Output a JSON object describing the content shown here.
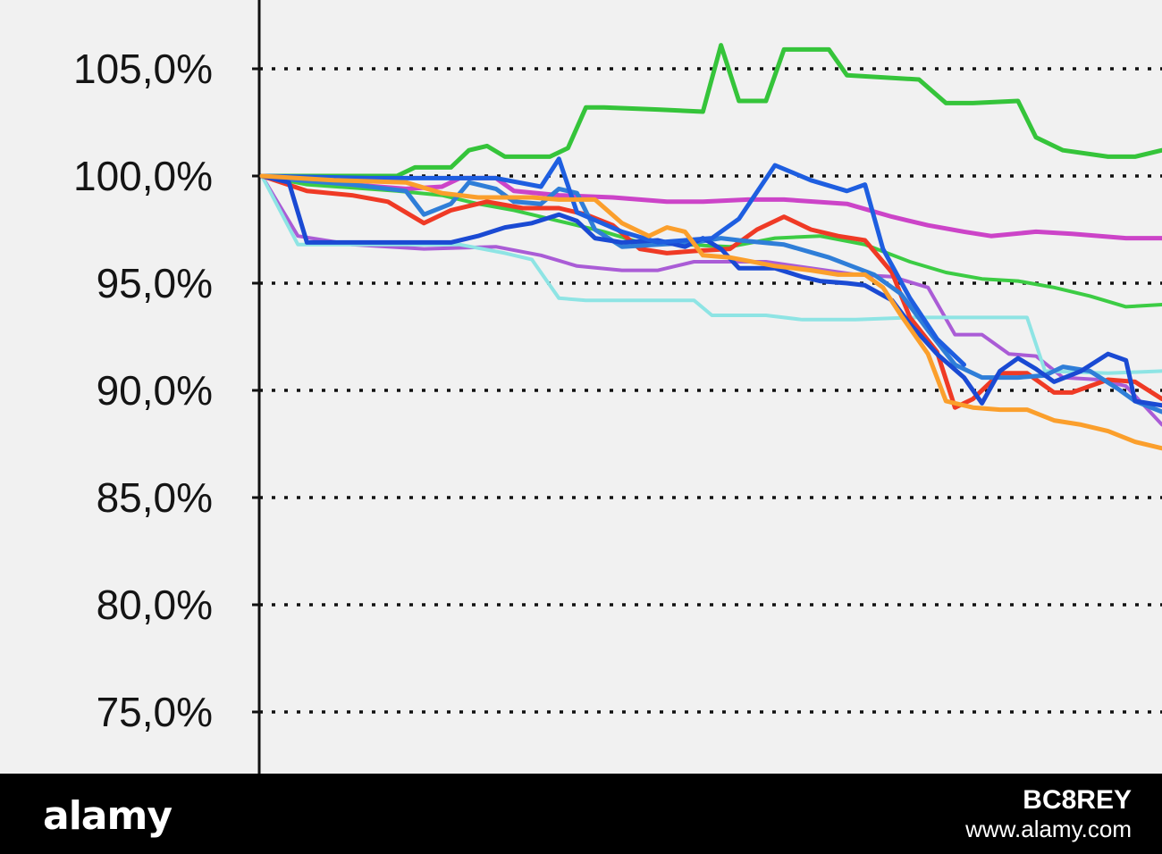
{
  "chart_data": {
    "type": "line",
    "title": "",
    "xlabel": "",
    "ylabel": "",
    "ylim": [
      73,
      108
    ],
    "xlim": [
      0,
      100
    ],
    "grid": true,
    "grid_style": "dotted horizontal",
    "y_ticks": [
      {
        "value": 105,
        "label": "105,0%"
      },
      {
        "value": 100,
        "label": "100,0%"
      },
      {
        "value": 95,
        "label": "95,0%"
      },
      {
        "value": 90,
        "label": "90,0%"
      },
      {
        "value": 85,
        "label": "85,0%"
      },
      {
        "value": 80,
        "label": "80,0%"
      },
      {
        "value": 75,
        "label": "75,0%"
      }
    ],
    "series": [
      {
        "color": "#35c43a",
        "width": 5,
        "points": [
          [
            0,
            100
          ],
          [
            15,
            100
          ],
          [
            17,
            100.4
          ],
          [
            21,
            100.4
          ],
          [
            23,
            101.2
          ],
          [
            25,
            101.4
          ],
          [
            27,
            100.9
          ],
          [
            32,
            100.9
          ],
          [
            34,
            101.3
          ],
          [
            36,
            103.2
          ],
          [
            38,
            103.2
          ],
          [
            44,
            103.1
          ],
          [
            49,
            103
          ],
          [
            51,
            106.1
          ],
          [
            53,
            103.5
          ],
          [
            56,
            103.5
          ],
          [
            58,
            105.9
          ],
          [
            63,
            105.9
          ],
          [
            65,
            104.7
          ],
          [
            73,
            104.5
          ],
          [
            76,
            103.4
          ],
          [
            79,
            103.4
          ],
          [
            84,
            103.5
          ],
          [
            86,
            101.8
          ],
          [
            89,
            101.2
          ],
          [
            94,
            100.9
          ],
          [
            97,
            100.9
          ],
          [
            100,
            101.2
          ]
        ]
      },
      {
        "color": "#3ccc44",
        "width": 4,
        "points": [
          [
            0,
            100
          ],
          [
            5,
            99.6
          ],
          [
            15,
            99.3
          ],
          [
            20,
            99.1
          ],
          [
            24,
            98.7
          ],
          [
            28,
            98.4
          ],
          [
            33,
            97.9
          ],
          [
            38,
            97.4
          ],
          [
            42,
            96.9
          ],
          [
            47,
            96.8
          ],
          [
            52,
            96.7
          ],
          [
            57,
            97.1
          ],
          [
            62,
            97.2
          ],
          [
            67,
            96.8
          ],
          [
            72,
            96
          ],
          [
            76,
            95.5
          ],
          [
            80,
            95.2
          ],
          [
            84,
            95.1
          ],
          [
            88,
            94.8
          ],
          [
            92,
            94.4
          ],
          [
            96,
            93.9
          ],
          [
            100,
            94
          ]
        ]
      },
      {
        "color": "#cc44c8",
        "width": 5,
        "points": [
          [
            0,
            100
          ],
          [
            5,
            99.8
          ],
          [
            10,
            99.6
          ],
          [
            16,
            99.4
          ],
          [
            20,
            99.5
          ],
          [
            22,
            99.9
          ],
          [
            26,
            99.9
          ],
          [
            28,
            99.3
          ],
          [
            33,
            99.1
          ],
          [
            39,
            99
          ],
          [
            45,
            98.8
          ],
          [
            49,
            98.8
          ],
          [
            54,
            98.9
          ],
          [
            58,
            98.9
          ],
          [
            65,
            98.7
          ],
          [
            70,
            98.1
          ],
          [
            74,
            97.7
          ],
          [
            78,
            97.4
          ],
          [
            81,
            97.2
          ],
          [
            86,
            97.4
          ],
          [
            90,
            97.3
          ],
          [
            96,
            97.1
          ],
          [
            100,
            97.1
          ]
        ]
      },
      {
        "color": "#aa5cd6",
        "width": 4,
        "points": [
          [
            0,
            100
          ],
          [
            4,
            97.2
          ],
          [
            10,
            96.8
          ],
          [
            18,
            96.6
          ],
          [
            26,
            96.7
          ],
          [
            31,
            96.3
          ],
          [
            35,
            95.8
          ],
          [
            40,
            95.6
          ],
          [
            44,
            95.6
          ],
          [
            48,
            96
          ],
          [
            56,
            96
          ],
          [
            61,
            95.7
          ],
          [
            66,
            95.4
          ],
          [
            70,
            95.3
          ],
          [
            74,
            94.8
          ],
          [
            77,
            92.6
          ],
          [
            80,
            92.6
          ],
          [
            83,
            91.7
          ],
          [
            86,
            91.6
          ],
          [
            89,
            90.6
          ],
          [
            93,
            90.5
          ],
          [
            96,
            90.2
          ],
          [
            100,
            88.4
          ]
        ]
      },
      {
        "color": "#8ee4e4",
        "width": 4,
        "points": [
          [
            0,
            100
          ],
          [
            4,
            96.8
          ],
          [
            15,
            96.8
          ],
          [
            22,
            96.8
          ],
          [
            27,
            96.4
          ],
          [
            30,
            96.1
          ],
          [
            33,
            94.3
          ],
          [
            36,
            94.2
          ],
          [
            42,
            94.2
          ],
          [
            48,
            94.2
          ],
          [
            50,
            93.5
          ],
          [
            56,
            93.5
          ],
          [
            60,
            93.3
          ],
          [
            66,
            93.3
          ],
          [
            72,
            93.4
          ],
          [
            80,
            93.4
          ],
          [
            85,
            93.4
          ],
          [
            87,
            90.9
          ],
          [
            94,
            90.8
          ],
          [
            100,
            90.9
          ]
        ]
      },
      {
        "color": "#ef3a25",
        "width": 5,
        "points": [
          [
            0,
            100
          ],
          [
            5,
            99.3
          ],
          [
            10,
            99.1
          ],
          [
            14,
            98.8
          ],
          [
            18,
            97.8
          ],
          [
            21,
            98.4
          ],
          [
            25,
            98.8
          ],
          [
            29,
            98.5
          ],
          [
            33,
            98.5
          ],
          [
            36,
            98.2
          ],
          [
            39,
            97.7
          ],
          [
            42,
            96.6
          ],
          [
            45,
            96.4
          ],
          [
            48,
            96.5
          ],
          [
            52,
            96.6
          ],
          [
            55,
            97.5
          ],
          [
            58,
            98.1
          ],
          [
            61,
            97.5
          ],
          [
            64,
            97.2
          ],
          [
            67,
            97
          ],
          [
            70,
            95.5
          ],
          [
            72,
            93.4
          ],
          [
            75,
            91.8
          ],
          [
            77,
            89.2
          ],
          [
            79,
            89.6
          ],
          [
            82,
            90.8
          ],
          [
            85,
            90.8
          ],
          [
            88,
            89.9
          ],
          [
            90,
            89.9
          ],
          [
            94,
            90.5
          ],
          [
            97,
            90.4
          ],
          [
            100,
            89.6
          ]
        ]
      },
      {
        "color": "#2f7ed8",
        "width": 5,
        "points": [
          [
            0,
            100
          ],
          [
            4,
            99.8
          ],
          [
            10,
            99.6
          ],
          [
            16,
            99.3
          ],
          [
            18,
            98.2
          ],
          [
            21,
            98.7
          ],
          [
            23,
            99.7
          ],
          [
            26,
            99.4
          ],
          [
            28,
            98.8
          ],
          [
            31,
            98.7
          ],
          [
            33,
            99.4
          ],
          [
            35,
            99.2
          ],
          [
            37,
            97.5
          ],
          [
            40,
            96.7
          ],
          [
            44,
            96.8
          ],
          [
            48,
            96.9
          ],
          [
            51,
            97.1
          ],
          [
            53,
            97
          ],
          [
            58,
            96.8
          ],
          [
            63,
            96.2
          ],
          [
            68,
            95.4
          ],
          [
            71,
            94.5
          ],
          [
            74,
            92.8
          ],
          [
            77,
            91.2
          ],
          [
            80,
            90.6
          ],
          [
            84,
            90.6
          ],
          [
            87,
            90.7
          ],
          [
            89,
            91.1
          ],
          [
            92,
            90.9
          ],
          [
            95,
            90.1
          ],
          [
            97,
            89.5
          ],
          [
            100,
            89
          ]
        ]
      },
      {
        "color": "#1a4ad3",
        "width": 5,
        "points": [
          [
            0,
            100
          ],
          [
            3,
            99.7
          ],
          [
            5,
            96.9
          ],
          [
            12,
            96.9
          ],
          [
            21,
            96.9
          ],
          [
            24,
            97.2
          ],
          [
            27,
            97.6
          ],
          [
            30,
            97.8
          ],
          [
            33,
            98.2
          ],
          [
            35,
            97.9
          ],
          [
            37,
            97.1
          ],
          [
            40,
            96.9
          ],
          [
            44,
            97
          ],
          [
            47,
            96.7
          ],
          [
            49,
            97.1
          ],
          [
            51,
            96.6
          ],
          [
            53,
            95.7
          ],
          [
            57,
            95.7
          ],
          [
            60,
            95.3
          ],
          [
            62,
            95.1
          ],
          [
            65,
            95
          ],
          [
            67,
            94.9
          ],
          [
            70,
            94.2
          ],
          [
            72,
            93.1
          ],
          [
            75,
            91.7
          ],
          [
            78,
            90.6
          ],
          [
            80,
            89.4
          ],
          [
            82,
            90.9
          ],
          [
            84,
            91.5
          ],
          [
            86,
            91
          ],
          [
            88,
            90.4
          ],
          [
            91,
            90.9
          ],
          [
            94,
            91.7
          ],
          [
            96,
            91.4
          ],
          [
            97,
            89.5
          ],
          [
            100,
            89.3
          ]
        ]
      },
      {
        "color": "#1e5ee0",
        "width": 5,
        "points": [
          [
            0,
            100
          ],
          [
            12,
            99.9
          ],
          [
            26,
            99.9
          ],
          [
            31,
            99.5
          ],
          [
            33,
            100.8
          ],
          [
            35,
            98.3
          ],
          [
            40,
            97.4
          ],
          [
            44,
            96.9
          ],
          [
            47,
            97
          ],
          [
            50,
            97.1
          ],
          [
            53,
            98
          ],
          [
            57,
            100.5
          ],
          [
            61,
            99.8
          ],
          [
            65,
            99.3
          ],
          [
            67,
            99.6
          ],
          [
            69,
            96.6
          ],
          [
            72,
            94.3
          ],
          [
            75,
            92.4
          ],
          [
            78,
            91.2
          ]
        ]
      },
      {
        "color": "#fb9f2c",
        "width": 5,
        "points": [
          [
            0,
            100
          ],
          [
            8,
            99.8
          ],
          [
            16,
            99.7
          ],
          [
            20,
            99.2
          ],
          [
            24,
            99
          ],
          [
            30,
            99
          ],
          [
            33,
            98.9
          ],
          [
            37,
            98.9
          ],
          [
            40,
            97.8
          ],
          [
            43,
            97.2
          ],
          [
            45,
            97.6
          ],
          [
            47,
            97.4
          ],
          [
            49,
            96.3
          ],
          [
            52,
            96.2
          ],
          [
            57,
            95.8
          ],
          [
            61,
            95.6
          ],
          [
            64,
            95.4
          ],
          [
            67,
            95.4
          ],
          [
            69,
            94.8
          ],
          [
            71,
            93.5
          ],
          [
            74,
            91.7
          ],
          [
            76,
            89.5
          ],
          [
            79,
            89.2
          ],
          [
            82,
            89.1
          ],
          [
            85,
            89.1
          ],
          [
            88,
            88.6
          ],
          [
            91,
            88.4
          ],
          [
            94,
            88.1
          ],
          [
            97,
            87.6
          ],
          [
            100,
            87.3
          ]
        ]
      }
    ]
  },
  "footer": {
    "brand": "alamy",
    "image_code": "BC8REY",
    "url": "www.alamy.com"
  }
}
